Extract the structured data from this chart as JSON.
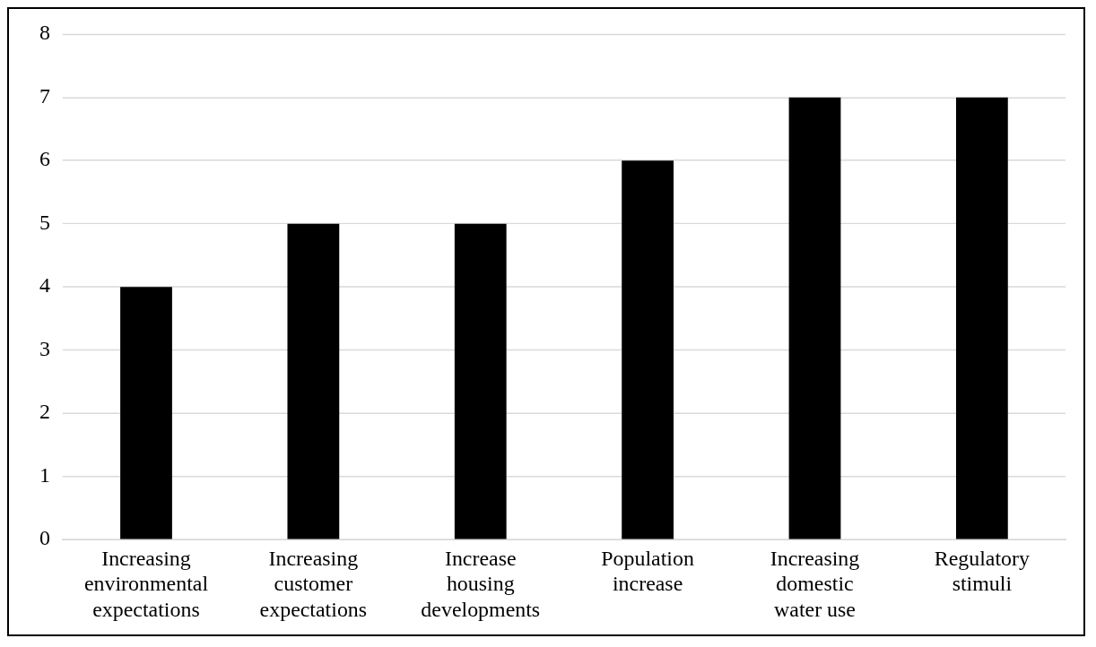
{
  "chart_data": {
    "type": "bar",
    "categories": [
      "Increasing environmental expectations",
      "Increasing customer expectations",
      "Increase housing developments",
      "Population increase",
      "Increasing domestic water use",
      "Regulatory stimuli"
    ],
    "values": [
      4,
      5,
      5,
      6,
      7,
      7
    ],
    "color": "#000000",
    "ylim": [
      0,
      8
    ],
    "yticks": [
      0,
      1,
      2,
      3,
      4,
      5,
      6,
      7,
      8
    ],
    "grid": "y",
    "legend": false
  }
}
